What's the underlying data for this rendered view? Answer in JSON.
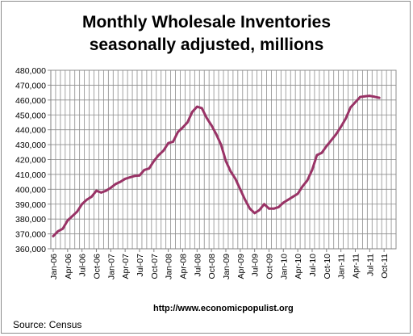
{
  "chart_data": {
    "type": "line",
    "title_lines": [
      "Monthly Wholesale Inventories",
      "seasonally adjusted, millions"
    ],
    "xlabel": "",
    "ylabel": "",
    "ylim": [
      360000,
      480000
    ],
    "y_ticks": [
      360000,
      370000,
      380000,
      390000,
      400000,
      410000,
      420000,
      430000,
      440000,
      450000,
      460000,
      470000,
      480000
    ],
    "y_tick_labels": [
      "360,000",
      "370,000",
      "380,000",
      "390,000",
      "400,000",
      "410,000",
      "420,000",
      "430,000",
      "440,000",
      "450,000",
      "460,000",
      "470,000",
      "480,000"
    ],
    "x_tick_labels": [
      "Jan-06",
      "Apr-06",
      "Jul-06",
      "Oct-06",
      "Jan-07",
      "Apr-07",
      "Jul-07",
      "Oct-07",
      "Jan-08",
      "Apr-08",
      "Jul-08",
      "Oct-08",
      "Jan-09",
      "Apr-09",
      "Jul-09",
      "Oct-09",
      "Jan-10",
      "Apr-10",
      "Jul-10",
      "Oct-10",
      "Jan-11",
      "Apr-11",
      "Jul-11",
      "Oct-11"
    ],
    "grid": true,
    "line_color": "#993366",
    "series": [
      {
        "name": "",
        "x": [
          "Jan-06",
          "Feb-06",
          "Mar-06",
          "Apr-06",
          "May-06",
          "Jun-06",
          "Jul-06",
          "Aug-06",
          "Sep-06",
          "Oct-06",
          "Nov-06",
          "Dec-06",
          "Jan-07",
          "Feb-07",
          "Mar-07",
          "Apr-07",
          "May-07",
          "Jun-07",
          "Jul-07",
          "Aug-07",
          "Sep-07",
          "Oct-07",
          "Nov-07",
          "Dec-07",
          "Jan-08",
          "Feb-08",
          "Mar-08",
          "Apr-08",
          "May-08",
          "Jun-08",
          "Jul-08",
          "Aug-08",
          "Sep-08",
          "Oct-08",
          "Nov-08",
          "Dec-08",
          "Jan-09",
          "Feb-09",
          "Mar-09",
          "Apr-09",
          "May-09",
          "Jun-09",
          "Jul-09",
          "Aug-09",
          "Sep-09",
          "Oct-09",
          "Nov-09",
          "Dec-09",
          "Jan-10",
          "Feb-10",
          "Mar-10",
          "Apr-10",
          "May-10",
          "Jun-10",
          "Jul-10",
          "Aug-10",
          "Sep-10",
          "Oct-10",
          "Nov-10",
          "Dec-10",
          "Jan-11",
          "Feb-11",
          "Mar-11",
          "Apr-11",
          "May-11",
          "Jun-11",
          "Jul-11",
          "Aug-11",
          "Sep-11"
        ],
        "values": [
          368500,
          371800,
          373500,
          379000,
          382000,
          385000,
          390000,
          393000,
          395000,
          399000,
          397800,
          399000,
          401000,
          403500,
          405000,
          407000,
          408000,
          409000,
          409300,
          413000,
          414000,
          419000,
          423000,
          426000,
          431000,
          432000,
          438500,
          441500,
          445000,
          452000,
          455500,
          454500,
          448000,
          443000,
          437000,
          430000,
          419000,
          412000,
          407000,
          400000,
          393000,
          387000,
          384000,
          386000,
          390000,
          387000,
          387000,
          388000,
          391000,
          393000,
          395000,
          397000,
          402000,
          406000,
          413000,
          423000,
          424500,
          429000,
          433000,
          437000,
          442000,
          447500,
          455000,
          458500,
          462000,
          462500,
          462800,
          462200,
          461500
        ]
      }
    ]
  },
  "source": {
    "url": "http://www.economicpopulist.org",
    "note": "Source:  Census"
  }
}
